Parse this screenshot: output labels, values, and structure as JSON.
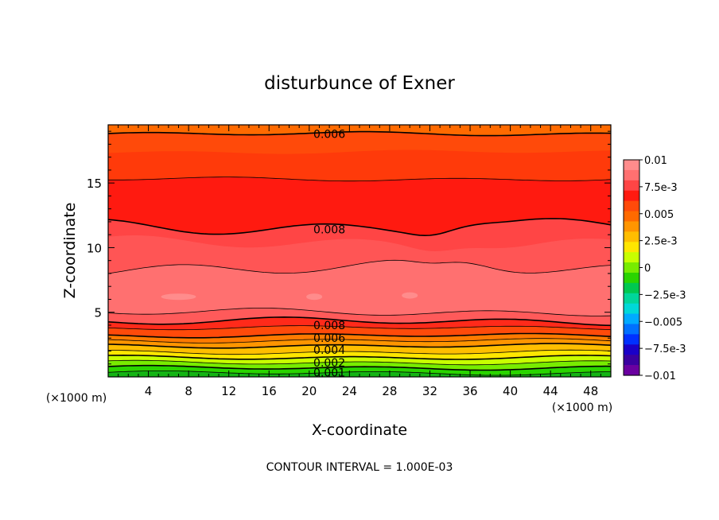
{
  "chart_data": {
    "type": "heatmap",
    "subtype": "filled-contour",
    "title": "disturbunce of Exner",
    "xlabel": "X-coordinate",
    "ylabel": "Z-coordinate",
    "x_unit_left": "(×1000 m)",
    "x_unit_right": "(×1000 m)",
    "footer": "CONTOUR INTERVAL = 1.000E-03",
    "xlim": [
      0,
      50
    ],
    "ylim": [
      0,
      19.5
    ],
    "x_ticks": [
      "4",
      "8",
      "12",
      "16",
      "20",
      "24",
      "28",
      "32",
      "36",
      "40",
      "44",
      "48"
    ],
    "x_tick_values": [
      4,
      8,
      12,
      16,
      20,
      24,
      28,
      32,
      36,
      40,
      44,
      48
    ],
    "y_ticks": [
      "5",
      "10",
      "15"
    ],
    "y_tick_values": [
      5,
      10,
      15
    ],
    "colorbar": {
      "labels": [
        "0.01",
        "7.5e-3",
        "0.005",
        "2.5e-3",
        "0",
        "−2.5e-3",
        "−0.005",
        "−7.5e-3",
        "−0.01"
      ],
      "min": -0.01,
      "max": 0.01,
      "colors_top_to_bottom": [
        "#ff8c8c",
        "#ff7070",
        "#ff4545",
        "#ff1a10",
        "#ff4a0a",
        "#ff6a00",
        "#ff9500",
        "#ffbe00",
        "#ffe600",
        "#c8ff00",
        "#78ec00",
        "#2ad400",
        "#00c850",
        "#00d69a",
        "#00d8d8",
        "#00aaff",
        "#0070ff",
        "#0030ff",
        "#1a00c8",
        "#3a00a0",
        "#6a00a0"
      ]
    },
    "contour_labels": [
      {
        "text": "0.006",
        "x": 22,
        "z": 18.8
      },
      {
        "text": "0.008",
        "x": 22,
        "z": 11.4
      },
      {
        "text": "0.008",
        "x": 22,
        "z": 4.0
      },
      {
        "text": "0.006",
        "x": 22,
        "z": 3.0
      },
      {
        "text": "0.004",
        "x": 22,
        "z": 2.1
      },
      {
        "text": "0.002",
        "x": 22,
        "z": 1.1
      },
      {
        "text": "0.001",
        "x": 22,
        "z": 0.35
      }
    ],
    "bands": [
      {
        "z_top": 19.5,
        "color": "#ff6a00"
      },
      {
        "z_top": 18.8,
        "color": "#ff4a0a"
      },
      {
        "z_top": 17.4,
        "color": "#ff3a0a"
      },
      {
        "z_top": 15.3,
        "color": "#ff1a10"
      },
      {
        "z_top": 11.6,
        "color": "#ff4545"
      },
      {
        "z_top": 10.3,
        "color": "#ff5555"
      },
      {
        "z_top": 8.4,
        "color": "#ff7070"
      },
      {
        "z_top": 5.0,
        "color": "#ff5a5a"
      },
      {
        "z_top": 4.3,
        "color": "#ff2a1a"
      },
      {
        "z_top": 3.8,
        "color": "#ff4a0a"
      },
      {
        "z_top": 3.2,
        "color": "#ff7a00"
      },
      {
        "z_top": 2.8,
        "color": "#ff9500"
      },
      {
        "z_top": 2.4,
        "color": "#ffbe00"
      },
      {
        "z_top": 1.9,
        "color": "#ffe600"
      },
      {
        "z_top": 1.5,
        "color": "#c8ff00"
      },
      {
        "z_top": 1.1,
        "color": "#78ec00"
      },
      {
        "z_top": 0.7,
        "color": "#2ad400"
      },
      {
        "z_top": 0.3,
        "color": "#14b414"
      }
    ],
    "contour_lines": [
      {
        "z": 18.8,
        "width": 1.6
      },
      {
        "z": 15.3,
        "width": 0.8
      },
      {
        "z": 11.6,
        "width": 1.6
      },
      {
        "z": 8.4,
        "width": 0.8
      },
      {
        "z": 5.0,
        "width": 0.8
      },
      {
        "z": 4.3,
        "width": 1.6
      },
      {
        "z": 3.8,
        "width": 0.8
      },
      {
        "z": 3.2,
        "width": 1.6
      },
      {
        "z": 2.8,
        "width": 0.8
      },
      {
        "z": 2.4,
        "width": 1.6
      },
      {
        "z": 1.9,
        "width": 0.8
      },
      {
        "z": 1.5,
        "width": 1.6
      },
      {
        "z": 1.1,
        "width": 0.8
      },
      {
        "z": 0.7,
        "width": 1.6
      },
      {
        "z": 0.3,
        "width": 0.8
      }
    ]
  }
}
